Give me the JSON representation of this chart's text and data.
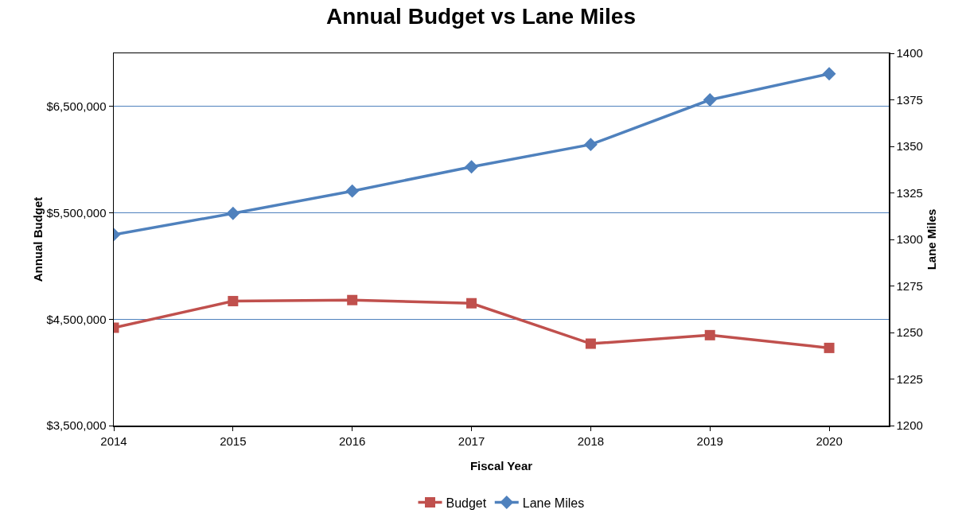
{
  "chart_data": {
    "type": "line",
    "title": "Annual Budget vs Lane Miles",
    "xlabel": "Fiscal Year",
    "ylabel": "Annual Budget",
    "y2label": "Lane Miles",
    "x": [
      2014,
      2015,
      2016,
      2017,
      2018,
      2019,
      2020
    ],
    "xlim": [
      2014,
      2020.5
    ],
    "xticks": [
      2014,
      2015,
      2016,
      2017,
      2018,
      2019,
      2020
    ],
    "ylim": [
      3500000,
      7000000
    ],
    "yticks": [
      {
        "value": 3500000,
        "label": "$3,500,000"
      },
      {
        "value": 4500000,
        "label": "$4,500,000"
      },
      {
        "value": 5500000,
        "label": "$5,500,000"
      },
      {
        "value": 6500000,
        "label": "$6,500,000"
      }
    ],
    "y2lim": [
      1200,
      1400
    ],
    "y2ticks": [
      1200,
      1225,
      1250,
      1275,
      1300,
      1325,
      1350,
      1375,
      1400
    ],
    "series": [
      {
        "name": "Budget",
        "color": "#c0504d",
        "marker": "square",
        "values": [
          4420000,
          4670000,
          4680000,
          4650000,
          4270000,
          4350000,
          4230000
        ]
      },
      {
        "name": "Lane Miles",
        "color": "#4f81bd",
        "marker": "diamond",
        "axis": "y2",
        "values": [
          1302.6,
          1314,
          1326,
          1339,
          1351,
          1375,
          1389
        ]
      }
    ],
    "grid": "y",
    "legend": "bottom",
    "line_style": "solid"
  }
}
